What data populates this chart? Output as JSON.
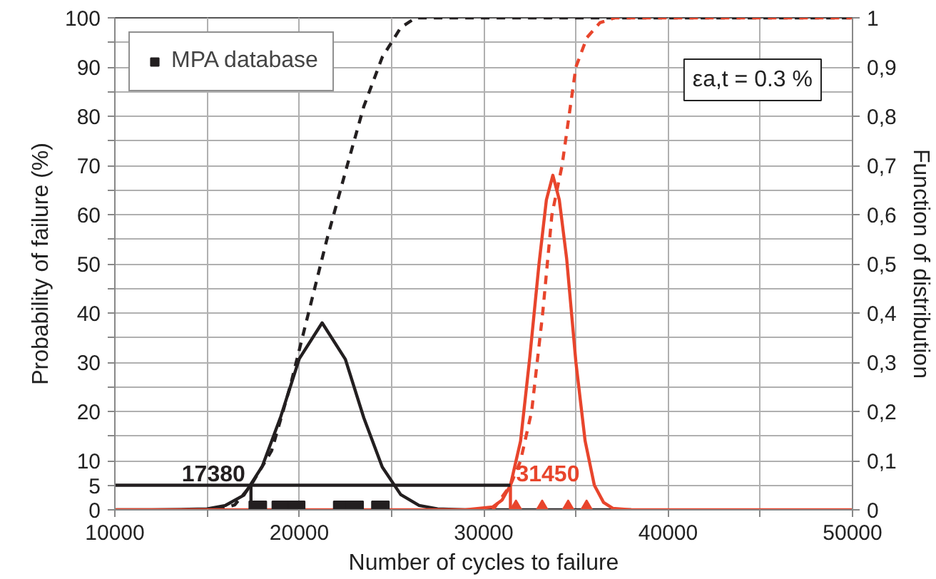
{
  "chart_data": {
    "type": "line",
    "xlabel": "Number of cycles to failure",
    "ylabel": "Probability of failure (%)",
    "y2label": "Function of distribution",
    "xlim": [
      10000,
      50000
    ],
    "ylim": [
      0,
      100
    ],
    "y2lim": [
      0,
      1
    ],
    "xticks": [
      10000,
      {
        "value": 15000,
        "label": null
      },
      20000,
      {
        "value": 25000,
        "label": null
      },
      30000,
      {
        "value": 35000,
        "label": null
      },
      40000,
      {
        "value": 45000,
        "label": null
      },
      50000
    ],
    "yticks": [
      0,
      5,
      10,
      {
        "value": 15,
        "label": null
      },
      20,
      {
        "value": 25,
        "label": null
      },
      30,
      {
        "value": 35,
        "label": null
      },
      40,
      {
        "value": 45,
        "label": null
      },
      50,
      {
        "value": 55,
        "label": null
      },
      60,
      {
        "value": 65,
        "label": null
      },
      70,
      {
        "value": 75,
        "label": null
      },
      80,
      {
        "value": 85,
        "label": null
      },
      90,
      {
        "value": 95,
        "label": null
      },
      100
    ],
    "y2ticks": [
      0,
      {
        "value": 0.1,
        "label": "0,1"
      },
      {
        "value": 0.2,
        "label": "0,2"
      },
      {
        "value": 0.3,
        "label": "0,3"
      },
      {
        "value": 0.4,
        "label": "0,4"
      },
      {
        "value": 0.5,
        "label": "0,5"
      },
      {
        "value": 0.6,
        "label": "0,6"
      },
      {
        "value": 0.7,
        "label": "0,7"
      },
      {
        "value": 0.8,
        "label": "0,8"
      },
      {
        "value": 0.9,
        "label": "0,9"
      },
      1
    ],
    "grid": true,
    "legend": "top left",
    "series": [
      {
        "color": "#231f20",
        "x": [
          10000,
          12000,
          14000,
          15000,
          16000,
          17000,
          18000,
          19000,
          20000,
          21240,
          22500,
          23500,
          24500,
          25500,
          26500,
          27500,
          29000,
          38000
        ],
        "values": [
          0,
          0,
          0.1,
          0.2,
          0.9,
          3,
          8.9,
          19,
          30.7,
          38,
          30.6,
          18.7,
          8.7,
          3.1,
          0.9,
          0.2,
          0,
          0
        ]
      },
      {
        "axis": "y2",
        "line_style": "dashed",
        "color": "#231f20",
        "x": [
          15500,
          16500,
          17380,
          18500,
          19500,
          20500,
          21500,
          22600,
          23500,
          24500,
          25500,
          26300,
          50000
        ],
        "values": [
          0,
          0.01,
          0.05,
          0.12,
          0.25,
          0.4,
          0.55,
          0.7,
          0.82,
          0.92,
          0.98,
          1,
          1
        ]
      },
      {
        "color": "#e8452c",
        "x": [
          10000,
          29000,
          30500,
          31000,
          31450,
          32000,
          32500,
          33000,
          33400,
          33750,
          34100,
          34500,
          35000,
          35500,
          36000,
          36500,
          37000,
          38000,
          50000
        ],
        "values": [
          0,
          0,
          0.6,
          2,
          5,
          14,
          31,
          50,
          63,
          68,
          63,
          51,
          30,
          14,
          5,
          1.5,
          0.3,
          0,
          0
        ]
      },
      {
        "axis": "y2",
        "line_style": "dashed",
        "color": "#e8452c",
        "x": [
          30500,
          31450,
          32000,
          32600,
          33200,
          33700,
          34250,
          34700,
          35000,
          35600,
          36300,
          37100,
          50000
        ],
        "values": [
          0,
          0.05,
          0.1,
          0.2,
          0.4,
          0.6,
          0.7,
          0.82,
          0.9,
          0.96,
          0.99,
          1,
          1
        ]
      },
      {
        "color": "#e8452c",
        "x": [
          31450,
          31450
        ],
        "values": [
          0,
          5
        ]
      },
      {
        "color": "#231f20",
        "x": [
          17380,
          17380,
          10000,
          31450
        ],
        "values": [
          0,
          5,
          5,
          5
        ]
      },
      {
        "type": "scatter",
        "name": "MPA database",
        "marker": "square",
        "color": "#231f20",
        "x": [
          17750,
          19000,
          19830,
          22330,
          23000,
          24400
        ],
        "values": [
          0,
          0,
          0,
          0,
          0,
          0
        ]
      },
      {
        "type": "scatter",
        "marker": "triangle",
        "color": "#e8452c",
        "x": [
          31750,
          33170,
          34580,
          35580
        ],
        "values": [
          0,
          0,
          0,
          0
        ]
      }
    ],
    "annotations": [
      {
        "text": "17380",
        "x": 17380,
        "y": 5
      },
      {
        "text": "31450",
        "x": 31450,
        "y": 5
      },
      "εa,t = 0.3 %"
    ]
  }
}
